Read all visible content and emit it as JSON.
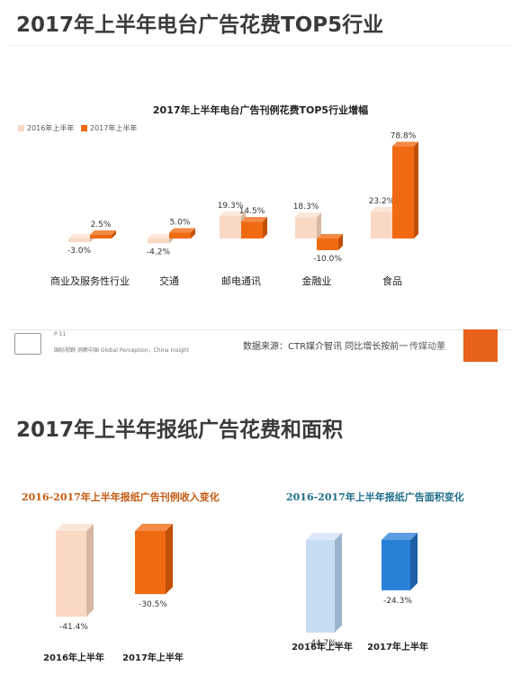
{
  "section1": {
    "heading": "2017年上半年电台广告花费TOP5行业"
  },
  "section2": {
    "heading": "2017年上半年报纸广告花费和面积"
  },
  "footer": {
    "source": "数据来源：CTR媒介智讯   同比增长按前一",
    "page_no": "P 11",
    "org_line": "国际视野  洞察中国  Global Perception，China Insight",
    "overlay_text": "传媒动董"
  },
  "colors": {
    "light": "#f9d9c4",
    "light_side": "#d9b8a3",
    "orange": "#f06a12",
    "orange_side": "#c24f06",
    "blue_light": "#c7dcf2",
    "blue_light_side": "#9bb3cf",
    "blue": "#2a7fd6",
    "blue_side": "#1c5fa6",
    "title_orange": "#c55a11",
    "title_teal": "#1f6f8b"
  },
  "chart_data": [
    {
      "type": "bar",
      "title": "2017年上半年电台广告刊例花费TOP5行业增幅",
      "categories": [
        "商业及服务性行业",
        "交通",
        "邮电通讯",
        "金融业",
        "食品"
      ],
      "series": [
        {
          "name": "2016年上半年",
          "values": [
            -3.0,
            -4.2,
            19.3,
            18.3,
            23.2
          ],
          "labels": [
            "-3.0%",
            "-4.2%",
            "19.3%",
            "18.3%",
            "23.2%"
          ]
        },
        {
          "name": "2017年上半年",
          "values": [
            2.5,
            5.0,
            14.5,
            -10.0,
            78.8
          ],
          "labels": [
            "2.5%",
            "5.0%",
            "14.5%",
            "-10.0%",
            "78.8%"
          ]
        }
      ],
      "legend": "top-left"
    },
    {
      "type": "bar",
      "title": "2016-2017年上半年报纸广告刊例收入变化",
      "categories": [
        "2016年上半年",
        "2017年上半年"
      ],
      "values": [
        -41.4,
        -30.5
      ],
      "labels": [
        "-41.4%",
        "-30.5%"
      ]
    },
    {
      "type": "bar",
      "title": "2016-2017年上半年报纸广告面积变化",
      "categories": [
        "2016年上半年",
        "2017年上半年"
      ],
      "values": [
        -44.7,
        -24.3
      ],
      "labels": [
        "-44.7%",
        "-24.3%"
      ]
    }
  ]
}
